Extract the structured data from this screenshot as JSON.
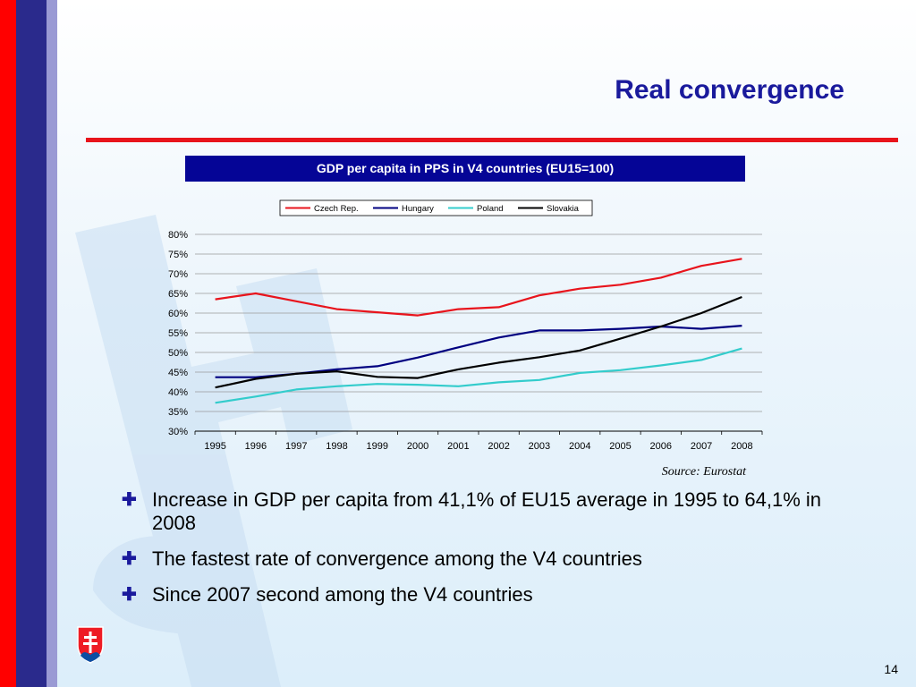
{
  "slide": {
    "title": "Real convergence",
    "chart_header": "GDP per capita in PPS in V4 countries (EU15=100)",
    "source": "Source: Eurostat",
    "page_number": "14",
    "bullet_marker": "✚",
    "bullets": [
      "Increase in GDP per capita from 41,1% of EU15 average in 1995 to 64,1% in 2008",
      "The fastest rate of convergence among the V4 countries",
      "Since 2007 second among the V4 countries"
    ]
  },
  "colors": {
    "accent_red": "#e8141c",
    "navy": "#1a1a9c",
    "header_bg": "#050596"
  },
  "chart_data": {
    "type": "line",
    "title": "GDP per capita in PPS in V4 countries (EU15=100)",
    "xlabel": "",
    "ylabel": "",
    "ylim": [
      30,
      80
    ],
    "yticks": [
      30,
      35,
      40,
      45,
      50,
      55,
      60,
      65,
      70,
      75,
      80
    ],
    "ytick_labels": [
      "30%",
      "35%",
      "40%",
      "45%",
      "50%",
      "55%",
      "60%",
      "65%",
      "70%",
      "75%",
      "80%"
    ],
    "grid": true,
    "legend_placement": "top",
    "categories": [
      "1995",
      "1996",
      "1997",
      "1998",
      "1999",
      "2000",
      "2001",
      "2002",
      "2003",
      "2004",
      "2005",
      "2006",
      "2007",
      "2008"
    ],
    "series": [
      {
        "name": "Czech Rep.",
        "color": "#e8141c",
        "values": [
          63.5,
          65.0,
          63.0,
          61.0,
          60.2,
          59.4,
          61.0,
          61.5,
          64.5,
          66.2,
          67.2,
          69.0,
          72.0,
          73.8
        ]
      },
      {
        "name": "Hungary",
        "color": "#000080",
        "values": [
          43.7,
          43.7,
          44.6,
          45.7,
          46.5,
          48.7,
          51.3,
          53.8,
          55.6,
          55.6,
          56.0,
          56.6,
          56.0,
          56.8
        ]
      },
      {
        "name": "Poland",
        "color": "#33cccc",
        "values": [
          37.2,
          38.8,
          40.6,
          41.4,
          42.0,
          41.8,
          41.4,
          42.4,
          43.0,
          44.8,
          45.5,
          46.7,
          48.1,
          51.0
        ]
      },
      {
        "name": "Slovakia",
        "color": "#000000",
        "values": [
          41.1,
          43.3,
          44.6,
          45.2,
          43.8,
          43.5,
          45.7,
          47.4,
          48.8,
          50.5,
          53.5,
          56.6,
          60.0,
          64.1
        ]
      }
    ]
  }
}
